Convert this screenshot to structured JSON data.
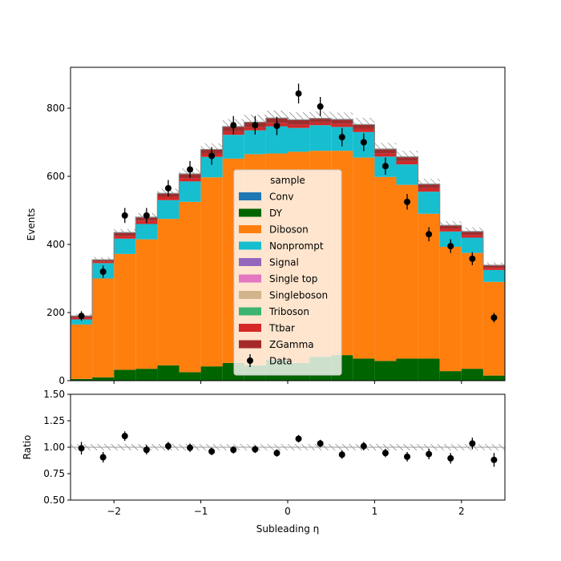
{
  "chart_data": [
    {
      "type": "stacked-step-histogram",
      "ylabel": "Events",
      "xlim": [
        -2.5,
        2.5
      ],
      "ylim": [
        0,
        920
      ],
      "yticks": [
        0,
        200,
        400,
        600,
        800
      ],
      "bin_edges": [
        -2.5,
        -2.25,
        -2.0,
        -1.75,
        -1.5,
        -1.25,
        -1.0,
        -0.75,
        -0.5,
        -0.25,
        0.0,
        0.25,
        0.5,
        0.75,
        1.0,
        1.25,
        1.5,
        1.75,
        2.0,
        2.25,
        2.5
      ],
      "legend": {
        "title": "sample",
        "placement": "center"
      },
      "stack_order": [
        "DY",
        "Diboson",
        "Nonprompt",
        "Ttbar",
        "ZGamma"
      ],
      "series": [
        {
          "name": "Conv",
          "color": "#1f77b4",
          "values": [
            0,
            0,
            0,
            0,
            0,
            0,
            0,
            0,
            0,
            0,
            0,
            0,
            0,
            0,
            0,
            0,
            0,
            0,
            0,
            0
          ]
        },
        {
          "name": "DY",
          "color": "#006400",
          "values": [
            5,
            10,
            32,
            35,
            45,
            25,
            42,
            52,
            45,
            62,
            52,
            70,
            75,
            65,
            58,
            65,
            65,
            28,
            35,
            15
          ]
        },
        {
          "name": "Diboson",
          "color": "#ff7f0e",
          "values": [
            160,
            290,
            340,
            380,
            430,
            500,
            555,
            600,
            620,
            605,
            620,
            605,
            600,
            590,
            540,
            510,
            425,
            365,
            340,
            275
          ]
        },
        {
          "name": "Nonprompt",
          "color": "#17becf",
          "values": [
            15,
            45,
            45,
            45,
            55,
            60,
            60,
            70,
            70,
            80,
            70,
            75,
            70,
            75,
            60,
            60,
            65,
            45,
            45,
            35
          ]
        },
        {
          "name": "Signal",
          "color": "#9467bd",
          "values": [
            0,
            0,
            0,
            0,
            0,
            0,
            0,
            0,
            0,
            0,
            0,
            0,
            0,
            0,
            0,
            0,
            0,
            0,
            0,
            0
          ]
        },
        {
          "name": "Single top",
          "color": "#e377c2",
          "values": [
            0,
            0,
            0,
            0,
            0,
            0,
            0,
            0,
            0,
            0,
            0,
            0,
            0,
            0,
            0,
            0,
            0,
            0,
            0,
            0
          ]
        },
        {
          "name": "Singleboson",
          "color": "#d2b48c",
          "values": [
            0,
            0,
            0,
            0,
            0,
            0,
            0,
            0,
            0,
            0,
            0,
            0,
            0,
            0,
            0,
            0,
            0,
            0,
            0,
            0
          ]
        },
        {
          "name": "Triboson",
          "color": "#3cb371",
          "values": [
            0,
            0,
            0,
            0,
            0,
            0,
            0,
            0,
            0,
            0,
            0,
            0,
            0,
            0,
            0,
            0,
            0,
            0,
            0,
            0
          ]
        },
        {
          "name": "Ttbar",
          "color": "#d62728",
          "values": [
            5,
            5,
            8,
            10,
            10,
            10,
            10,
            10,
            10,
            10,
            10,
            8,
            10,
            10,
            10,
            10,
            10,
            8,
            8,
            6
          ]
        },
        {
          "name": "ZGamma",
          "color": "#a52a2a",
          "values": [
            5,
            5,
            10,
            10,
            10,
            12,
            12,
            14,
            14,
            14,
            14,
            12,
            12,
            12,
            12,
            12,
            12,
            10,
            10,
            8
          ]
        }
      ],
      "mc_uncertainty": [
        6,
        8,
        10,
        12,
        14,
        16,
        18,
        22,
        22,
        22,
        22,
        20,
        20,
        20,
        18,
        18,
        16,
        12,
        12,
        8
      ],
      "data": {
        "name": "Data",
        "color": "#000000",
        "x": [
          -2.375,
          -2.125,
          -1.875,
          -1.625,
          -1.375,
          -1.125,
          -0.875,
          -0.625,
          -0.375,
          -0.125,
          0.125,
          0.375,
          0.625,
          0.875,
          1.125,
          1.375,
          1.625,
          1.875,
          2.125,
          2.375
        ],
        "y": [
          190,
          320,
          485,
          485,
          565,
          620,
          660,
          750,
          750,
          748,
          843,
          805,
          715,
          700,
          630,
          525,
          430,
          395,
          358,
          185
        ],
        "err": [
          14,
          18,
          22,
          22,
          24,
          25,
          26,
          27,
          27,
          27,
          29,
          28,
          27,
          26,
          25,
          23,
          21,
          20,
          19,
          14
        ]
      }
    },
    {
      "type": "scatter-ratio",
      "xlabel": "Subleading η",
      "ylabel": "Ratio",
      "xlim": [
        -2.5,
        2.5
      ],
      "ylim": [
        0.5,
        1.5
      ],
      "xticks": [
        -2,
        -1,
        0,
        1,
        2
      ],
      "xtick_labels": [
        "−2",
        "−1",
        "0",
        "1",
        "2"
      ],
      "yticks": [
        0.5,
        0.75,
        1.0,
        1.25,
        1.5
      ],
      "ytick_labels": [
        "0.50",
        "0.75",
        "1.00",
        "1.25",
        "1.50"
      ],
      "x": [
        -2.375,
        -2.125,
        -1.875,
        -1.625,
        -1.375,
        -1.125,
        -0.875,
        -0.625,
        -0.375,
        -0.125,
        0.125,
        0.375,
        0.625,
        0.875,
        1.125,
        1.375,
        1.625,
        1.875,
        2.125,
        2.375
      ],
      "y": [
        0.99,
        0.905,
        1.105,
        0.975,
        1.01,
        0.995,
        0.96,
        0.975,
        0.98,
        0.945,
        1.08,
        1.035,
        0.93,
        1.01,
        0.945,
        0.91,
        0.935,
        0.895,
        1.035,
        0.88
      ],
      "err": [
        0.06,
        0.05,
        0.045,
        0.045,
        0.04,
        0.04,
        0.035,
        0.035,
        0.035,
        0.035,
        0.035,
        0.035,
        0.04,
        0.04,
        0.04,
        0.045,
        0.05,
        0.05,
        0.055,
        0.065
      ],
      "band": [
        0.03,
        0.03,
        0.03,
        0.03,
        0.03,
        0.03,
        0.03,
        0.03,
        0.03,
        0.03,
        0.03,
        0.03,
        0.03,
        0.03,
        0.03,
        0.03,
        0.03,
        0.03,
        0.03,
        0.03
      ]
    }
  ]
}
